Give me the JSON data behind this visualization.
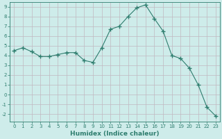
{
  "x": [
    0,
    1,
    2,
    3,
    4,
    5,
    6,
    7,
    8,
    9,
    10,
    11,
    12,
    13,
    14,
    15,
    16,
    17,
    18,
    19,
    20,
    21,
    22,
    23
  ],
  "y": [
    4.5,
    4.8,
    4.4,
    3.9,
    3.9,
    4.1,
    4.3,
    4.3,
    3.5,
    3.3,
    4.8,
    6.7,
    7.0,
    8.0,
    8.9,
    9.2,
    7.8,
    6.5,
    4.0,
    3.7,
    2.7,
    1.0,
    -1.3,
    -2.2
  ],
  "line_color": "#2e7d6e",
  "marker": "+",
  "marker_size": 4,
  "bg_color": "#ceecea",
  "grid_color_major": "#c0b8c0",
  "grid_color_minor": "#d6eeec",
  "xlabel": "Humidex (Indice chaleur)",
  "ylim": [
    -2.8,
    9.5
  ],
  "xlim": [
    -0.5,
    23.5
  ],
  "yticks": [
    -2,
    -1,
    0,
    1,
    2,
    3,
    4,
    5,
    6,
    7,
    8,
    9
  ],
  "xticks": [
    0,
    1,
    2,
    3,
    4,
    5,
    6,
    7,
    8,
    9,
    10,
    11,
    12,
    13,
    14,
    15,
    16,
    17,
    18,
    19,
    20,
    21,
    22,
    23
  ],
  "tick_color": "#2e7d6e",
  "label_color": "#2e7d6e",
  "tick_fontsize": 5.0,
  "xlabel_fontsize": 6.5
}
